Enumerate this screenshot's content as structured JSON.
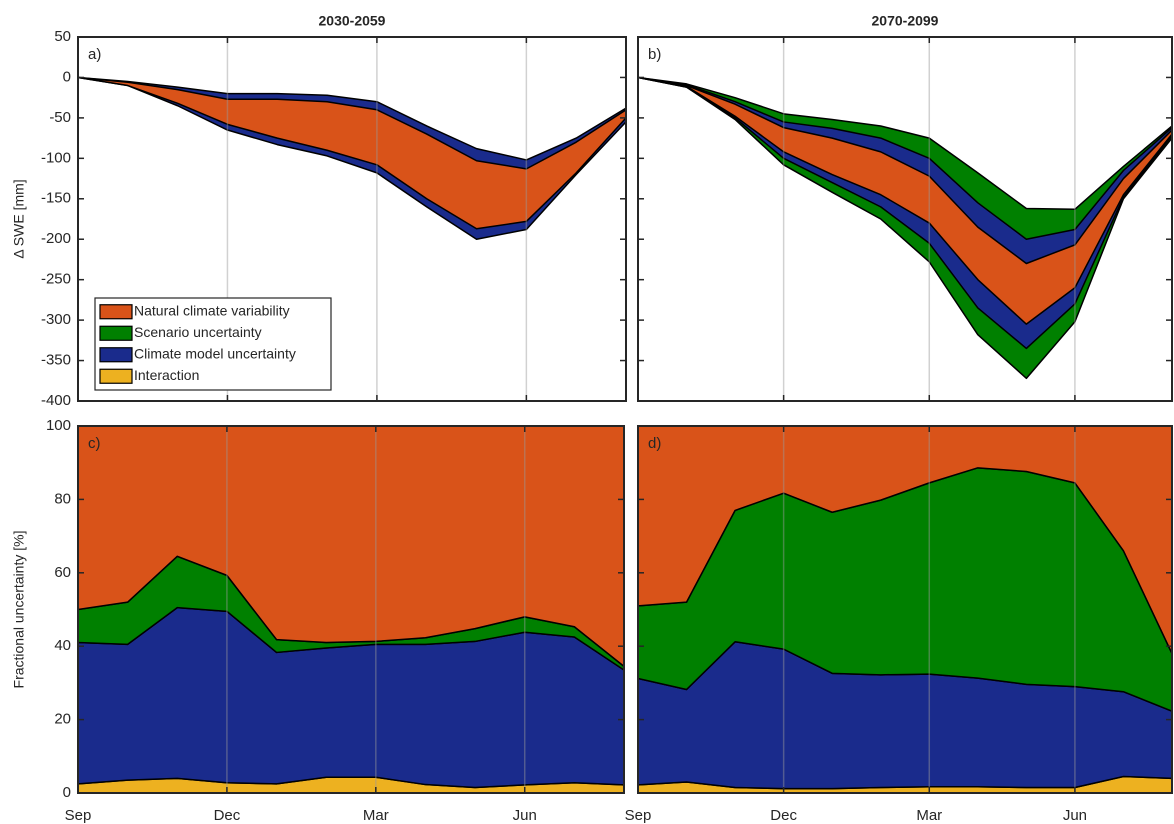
{
  "chart_data": [
    {
      "type": "band",
      "title": "2030-2059",
      "annotation": "a)",
      "ylabel": "Δ SWE [mm]",
      "x": [
        0,
        1,
        2,
        3,
        4,
        5,
        6,
        7,
        8,
        9,
        10,
        11
      ],
      "xlim": [
        0,
        11
      ],
      "xticks": [
        0,
        3,
        6,
        9
      ],
      "ylim": [
        -400,
        50
      ],
      "yticks": [
        50,
        0,
        -50,
        -100,
        -150,
        -200,
        -250,
        -300,
        -350,
        -400
      ],
      "grid": "x",
      "series": [
        {
          "color": "#1a2b8c",
          "upper": [
            0,
            -5,
            -12,
            -20,
            -20,
            -22,
            -30,
            -60,
            -88,
            -102,
            -75,
            -38
          ],
          "lower": [
            0,
            -10,
            -35,
            -65,
            -83,
            -97,
            -118,
            -160,
            -200,
            -188,
            -120,
            -55
          ]
        },
        {
          "color": "#d95319",
          "upper": [
            0,
            -6,
            -15,
            -27,
            -27,
            -30,
            -40,
            -70,
            -103,
            -113,
            -80,
            -40
          ],
          "lower": [
            0,
            -10,
            -32,
            -58,
            -75,
            -90,
            -108,
            -150,
            -187,
            -178,
            -118,
            -50
          ]
        }
      ],
      "legend": {
        "loc": "lower left",
        "entries": [
          {
            "name": "Natural climate variability",
            "color": "#d95319"
          },
          {
            "name": "Scenario uncertainty",
            "color": "#008000"
          },
          {
            "name": "Climate model uncertainty",
            "color": "#1a2b8c"
          },
          {
            "name": "Interaction",
            "color": "#edb120"
          }
        ]
      }
    },
    {
      "type": "band",
      "title": "2070-2099",
      "annotation": "b)",
      "x": [
        0,
        1,
        2,
        3,
        4,
        5,
        6,
        7,
        8,
        9,
        10,
        11
      ],
      "xlim": [
        0,
        11
      ],
      "xticks": [
        0,
        3,
        6,
        9
      ],
      "ylim": [
        -400,
        50
      ],
      "yticks": [
        50,
        0,
        -50,
        -100,
        -150,
        -200,
        -250,
        -300,
        -350,
        -400
      ],
      "grid": "x",
      "series": [
        {
          "color": "#008000",
          "upper": [
            0,
            -8,
            -25,
            -45,
            -52,
            -60,
            -75,
            -118,
            -162,
            -163,
            -110,
            -60
          ],
          "lower": [
            0,
            -12,
            -52,
            -108,
            -142,
            -175,
            -228,
            -318,
            -372,
            -302,
            -150,
            -75
          ]
        },
        {
          "color": "#1a2b8c",
          "upper": [
            0,
            -9,
            -30,
            -55,
            -63,
            -75,
            -100,
            -155,
            -200,
            -188,
            -115,
            -62
          ],
          "lower": [
            0,
            -12,
            -50,
            -100,
            -130,
            -160,
            -205,
            -285,
            -335,
            -280,
            -148,
            -72
          ]
        },
        {
          "color": "#d95319",
          "upper": [
            0,
            -10,
            -33,
            -62,
            -75,
            -92,
            -122,
            -185,
            -230,
            -207,
            -125,
            -65
          ],
          "lower": [
            0,
            -11,
            -48,
            -92,
            -120,
            -145,
            -180,
            -250,
            -305,
            -260,
            -145,
            -70
          ]
        }
      ]
    },
    {
      "type": "stacked_area",
      "annotation": "c)",
      "ylabel": "Fractional uncertainty [%]",
      "x": [
        0,
        1,
        2,
        3,
        4,
        5,
        6,
        7,
        8,
        9,
        10,
        11
      ],
      "xlim": [
        0,
        11
      ],
      "xticks": [
        {
          "value": 0,
          "label": "Sep"
        },
        {
          "value": 3,
          "label": "Dec"
        },
        {
          "value": 6,
          "label": "Mar"
        },
        {
          "value": 9,
          "label": "Jun"
        }
      ],
      "ylim": [
        0,
        100
      ],
      "yticks": [
        0,
        20,
        40,
        60,
        80,
        100
      ],
      "grid": "x",
      "series": [
        {
          "color": "#edb120",
          "values": [
            2.5,
            3.5,
            4,
            2.8,
            2.5,
            4.3,
            4.3,
            2.3,
            1.5,
            2.2,
            2.8,
            2.2
          ]
        },
        {
          "color": "#1a2b8c",
          "values": [
            38.5,
            37,
            46.5,
            46.7,
            35.8,
            35.2,
            36.2,
            38.2,
            39.8,
            41.6,
            39.7,
            31.3
          ]
        },
        {
          "color": "#008000",
          "values": [
            9,
            11.5,
            14,
            9.8,
            3.5,
            1.5,
            0.8,
            1.8,
            3.5,
            4.2,
            2.8,
            1
          ]
        },
        {
          "color": "#d95319",
          "values": [
            50,
            48,
            35.5,
            40.7,
            58.2,
            59,
            58.7,
            57.7,
            55.2,
            52,
            54.7,
            65.5
          ]
        }
      ]
    },
    {
      "type": "stacked_area",
      "annotation": "d)",
      "x": [
        0,
        1,
        2,
        3,
        4,
        5,
        6,
        7,
        8,
        9,
        10,
        11
      ],
      "xlim": [
        0,
        11
      ],
      "xticks": [
        {
          "value": 0,
          "label": "Sep"
        },
        {
          "value": 3,
          "label": "Dec"
        },
        {
          "value": 6,
          "label": "Mar"
        },
        {
          "value": 9,
          "label": "Jun"
        }
      ],
      "ylim": [
        0,
        100
      ],
      "yticks": [
        0,
        20,
        40,
        60,
        80,
        100
      ],
      "grid": "x",
      "series": [
        {
          "color": "#edb120",
          "values": [
            2.2,
            3,
            1.5,
            1.2,
            1.2,
            1.5,
            1.7,
            1.7,
            1.5,
            1.5,
            4.5,
            4
          ]
        },
        {
          "color": "#1a2b8c",
          "values": [
            29,
            25.2,
            39.7,
            38,
            31.4,
            30.7,
            30.7,
            29.6,
            28.1,
            27.5,
            23.1,
            18.3
          ]
        },
        {
          "color": "#008000",
          "values": [
            19.8,
            23.8,
            35.8,
            42.5,
            43.9,
            47.6,
            52.1,
            57.3,
            58,
            55.5,
            38.4,
            15.7
          ]
        },
        {
          "color": "#d95319",
          "values": [
            49,
            48,
            23,
            18.3,
            23.5,
            20.2,
            15.5,
            11.4,
            12.4,
            15.5,
            34,
            62
          ]
        }
      ]
    }
  ]
}
